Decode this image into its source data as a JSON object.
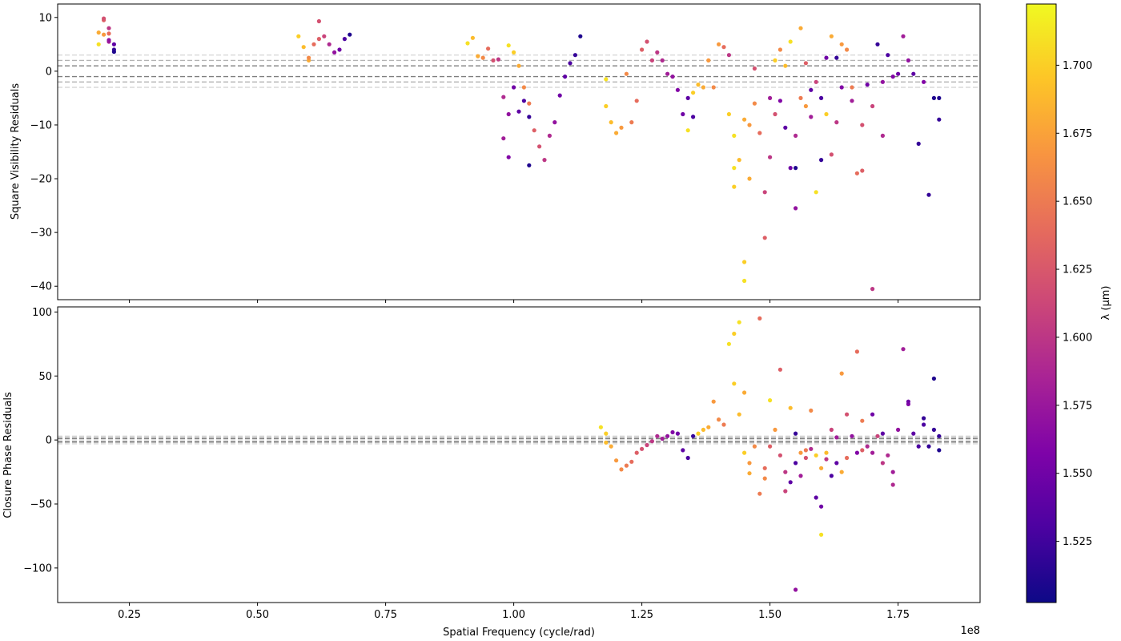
{
  "colors": {
    "grid_inner": "#7f7f7f",
    "grid_outer": "#d9d9d9",
    "frame": "#000000"
  },
  "colorbar": {
    "label": "λ (µm)",
    "vmin": 1.5025,
    "vmax": 1.7225,
    "ticks": [
      "1.525",
      "1.550",
      "1.575",
      "1.600",
      "1.625",
      "1.650",
      "1.675",
      "1.700"
    ],
    "tick_values": [
      1.525,
      1.55,
      1.575,
      1.6,
      1.625,
      1.65,
      1.675,
      1.7
    ],
    "colormap": "plasma"
  },
  "chart_data": [
    {
      "type": "scatter",
      "ylabel": "Square Visibility Residuals",
      "xlabel": "",
      "xlim": [
        0.11,
        1.91
      ],
      "ylim": [
        -42.5,
        12.5
      ],
      "x_scale_label": "",
      "yticks": [
        10,
        0,
        -10,
        -20,
        -30,
        -40
      ],
      "ytick_labels": [
        "10",
        "0",
        "−10",
        "−20",
        "−30",
        "−40"
      ],
      "reference_lines": [
        {
          "y": 1,
          "style": "dashed",
          "shade": "dark"
        },
        {
          "y": -1,
          "style": "dashed",
          "shade": "dark"
        },
        {
          "y": 2,
          "style": "dashed",
          "shade": "medium"
        },
        {
          "y": -2,
          "style": "dashed",
          "shade": "medium"
        },
        {
          "y": 3,
          "style": "dashed",
          "shade": "light"
        },
        {
          "y": -3,
          "style": "dashed",
          "shade": "light"
        }
      ],
      "points": [
        [
          0.19,
          5.0,
          1.71
        ],
        [
          0.19,
          7.2,
          1.68
        ],
        [
          0.2,
          6.8,
          1.67
        ],
        [
          0.2,
          9.5,
          1.63
        ],
        [
          0.2,
          9.8,
          1.62
        ],
        [
          0.21,
          7.0,
          1.64
        ],
        [
          0.21,
          8.0,
          1.6
        ],
        [
          0.21,
          5.5,
          1.58
        ],
        [
          0.22,
          5.0,
          1.54
        ],
        [
          0.22,
          4.0,
          1.52
        ],
        [
          0.22,
          3.6,
          1.51
        ],
        [
          0.21,
          5.8,
          1.57
        ],
        [
          0.58,
          6.5,
          1.7
        ],
        [
          0.59,
          4.5,
          1.69
        ],
        [
          0.6,
          2.0,
          1.68
        ],
        [
          0.6,
          2.5,
          1.66
        ],
        [
          0.61,
          5.0,
          1.64
        ],
        [
          0.62,
          6.0,
          1.63
        ],
        [
          0.62,
          9.3,
          1.62
        ],
        [
          0.63,
          6.5,
          1.61
        ],
        [
          0.64,
          5.0,
          1.59
        ],
        [
          0.65,
          3.5,
          1.57
        ],
        [
          0.66,
          4.0,
          1.55
        ],
        [
          0.67,
          6.0,
          1.53
        ],
        [
          0.68,
          6.8,
          1.51
        ],
        [
          0.91,
          5.2,
          1.71
        ],
        [
          0.92,
          6.2,
          1.69
        ],
        [
          0.93,
          2.8,
          1.68
        ],
        [
          0.94,
          2.5,
          1.66
        ],
        [
          0.95,
          4.2,
          1.64
        ],
        [
          0.96,
          2.0,
          1.62
        ],
        [
          0.97,
          2.2,
          1.6
        ],
        [
          0.98,
          -4.8,
          1.59
        ],
        [
          0.98,
          -12.5,
          1.58
        ],
        [
          0.99,
          -8.0,
          1.57
        ],
        [
          0.99,
          -16.0,
          1.56
        ],
        [
          1.0,
          -3.0,
          1.55
        ],
        [
          1.01,
          -7.5,
          1.54
        ],
        [
          1.02,
          -5.5,
          1.53
        ],
        [
          1.03,
          -8.5,
          1.52
        ],
        [
          1.03,
          -17.5,
          1.51
        ],
        [
          0.99,
          4.8,
          1.71
        ],
        [
          1.0,
          3.5,
          1.7
        ],
        [
          1.01,
          1.0,
          1.68
        ],
        [
          1.02,
          -3.0,
          1.66
        ],
        [
          1.03,
          -6.0,
          1.65
        ],
        [
          1.04,
          -11.0,
          1.63
        ],
        [
          1.05,
          -14.0,
          1.62
        ],
        [
          1.06,
          -16.5,
          1.6
        ],
        [
          1.07,
          -12.0,
          1.59
        ],
        [
          1.08,
          -9.5,
          1.57
        ],
        [
          1.09,
          -4.5,
          1.55
        ],
        [
          1.1,
          -1.0,
          1.54
        ],
        [
          1.11,
          1.5,
          1.53
        ],
        [
          1.12,
          3.0,
          1.52
        ],
        [
          1.13,
          6.5,
          1.51
        ],
        [
          1.18,
          -1.5,
          1.71
        ],
        [
          1.18,
          -6.5,
          1.7
        ],
        [
          1.19,
          -9.5,
          1.69
        ],
        [
          1.2,
          -11.5,
          1.68
        ],
        [
          1.21,
          -10.5,
          1.67
        ],
        [
          1.22,
          -0.5,
          1.66
        ],
        [
          1.23,
          -9.5,
          1.65
        ],
        [
          1.24,
          -5.5,
          1.64
        ],
        [
          1.25,
          4.0,
          1.63
        ],
        [
          1.26,
          5.5,
          1.62
        ],
        [
          1.27,
          2.0,
          1.61
        ],
        [
          1.28,
          3.5,
          1.6
        ],
        [
          1.29,
          2.0,
          1.59
        ],
        [
          1.3,
          -0.5,
          1.58
        ],
        [
          1.31,
          -1.0,
          1.57
        ],
        [
          1.32,
          -3.5,
          1.56
        ],
        [
          1.33,
          -8.0,
          1.55
        ],
        [
          1.34,
          -5.0,
          1.54
        ],
        [
          1.35,
          -8.5,
          1.53
        ],
        [
          1.34,
          -11.0,
          1.71
        ],
        [
          1.35,
          -4.0,
          1.7
        ],
        [
          1.36,
          -2.5,
          1.69
        ],
        [
          1.37,
          -3.0,
          1.68
        ],
        [
          1.38,
          2.0,
          1.67
        ],
        [
          1.39,
          -3.0,
          1.66
        ],
        [
          1.4,
          5.0,
          1.67
        ],
        [
          1.41,
          4.5,
          1.64
        ],
        [
          1.42,
          3.0,
          1.6
        ],
        [
          1.42,
          -8.0,
          1.7
        ],
        [
          1.43,
          -12.0,
          1.71
        ],
        [
          1.43,
          -18.0,
          1.71
        ],
        [
          1.43,
          -21.5,
          1.7
        ],
        [
          1.44,
          -16.5,
          1.69
        ],
        [
          1.45,
          -35.5,
          1.7
        ],
        [
          1.45,
          -39.0,
          1.71
        ],
        [
          1.45,
          -9.0,
          1.68
        ],
        [
          1.46,
          -10.0,
          1.67
        ],
        [
          1.46,
          -20.0,
          1.68
        ],
        [
          1.47,
          -6.0,
          1.66
        ],
        [
          1.47,
          0.5,
          1.62
        ],
        [
          1.48,
          -11.5,
          1.64
        ],
        [
          1.49,
          -31.0,
          1.63
        ],
        [
          1.49,
          -22.5,
          1.61
        ],
        [
          1.5,
          -5.0,
          1.58
        ],
        [
          1.5,
          -16.0,
          1.6
        ],
        [
          1.51,
          -8.0,
          1.62
        ],
        [
          1.51,
          2.0,
          1.7
        ],
        [
          1.52,
          4.0,
          1.66
        ],
        [
          1.52,
          -5.5,
          1.56
        ],
        [
          1.53,
          -10.5,
          1.54
        ],
        [
          1.53,
          1.0,
          1.69
        ],
        [
          1.54,
          -18.0,
          1.55
        ],
        [
          1.54,
          5.5,
          1.71
        ],
        [
          1.55,
          -18.0,
          1.51
        ],
        [
          1.55,
          -25.5,
          1.57
        ],
        [
          1.55,
          -12.0,
          1.59
        ],
        [
          1.56,
          -5.0,
          1.65
        ],
        [
          1.56,
          8.0,
          1.68
        ],
        [
          1.57,
          -6.5,
          1.67
        ],
        [
          1.57,
          1.5,
          1.63
        ],
        [
          1.58,
          -3.5,
          1.54
        ],
        [
          1.58,
          -8.5,
          1.58
        ],
        [
          1.59,
          -2.0,
          1.61
        ],
        [
          1.59,
          -22.5,
          1.71
        ],
        [
          1.6,
          -5.0,
          1.53
        ],
        [
          1.6,
          -16.5,
          1.52
        ],
        [
          1.61,
          -8.0,
          1.7
        ],
        [
          1.61,
          2.5,
          1.55
        ],
        [
          1.62,
          -15.5,
          1.62
        ],
        [
          1.62,
          6.5,
          1.68
        ],
        [
          1.63,
          -9.5,
          1.6
        ],
        [
          1.63,
          2.5,
          1.52
        ],
        [
          1.64,
          5.0,
          1.67
        ],
        [
          1.64,
          -3.0,
          1.56
        ],
        [
          1.65,
          4.0,
          1.66
        ],
        [
          1.66,
          -5.5,
          1.58
        ],
        [
          1.66,
          -3.0,
          1.65
        ],
        [
          1.67,
          -19.0,
          1.64
        ],
        [
          1.68,
          -18.5,
          1.63
        ],
        [
          1.68,
          -10.0,
          1.62
        ],
        [
          1.69,
          -2.5,
          1.55
        ],
        [
          1.7,
          -6.5,
          1.61
        ],
        [
          1.7,
          -40.5,
          1.6
        ],
        [
          1.71,
          5.0,
          1.52
        ],
        [
          1.72,
          -12.0,
          1.59
        ],
        [
          1.72,
          -2.0,
          1.57
        ],
        [
          1.73,
          3.0,
          1.53
        ],
        [
          1.74,
          -1.0,
          1.56
        ],
        [
          1.75,
          -0.5,
          1.55
        ],
        [
          1.76,
          6.5,
          1.58
        ],
        [
          1.77,
          2.0,
          1.57
        ],
        [
          1.78,
          -0.5,
          1.54
        ],
        [
          1.79,
          -13.5,
          1.52
        ],
        [
          1.8,
          -2.0,
          1.56
        ],
        [
          1.81,
          -23.0,
          1.52
        ],
        [
          1.82,
          -5.0,
          1.51
        ],
        [
          1.83,
          -5.0,
          1.51
        ],
        [
          1.83,
          -9.0,
          1.52
        ]
      ]
    },
    {
      "type": "scatter",
      "ylabel": "Closure Phase Residuals",
      "xlabel": "Spatial Frequency (cycle/rad)",
      "xlim": [
        0.11,
        1.91
      ],
      "ylim": [
        -127,
        104
      ],
      "x_scale_label": "1e8",
      "xticks": [
        0.25,
        0.5,
        0.75,
        1.0,
        1.25,
        1.5,
        1.75
      ],
      "xtick_labels": [
        "0.25",
        "0.50",
        "0.75",
        "1.00",
        "1.25",
        "1.50",
        "1.75"
      ],
      "yticks": [
        100,
        50,
        0,
        -50,
        -100
      ],
      "ytick_labels": [
        "100",
        "50",
        "0",
        "−50",
        "−100"
      ],
      "reference_lines": [
        {
          "y": 1,
          "style": "dashed",
          "shade": "dark"
        },
        {
          "y": -1,
          "style": "dashed",
          "shade": "dark"
        },
        {
          "y": 2,
          "style": "dashed",
          "shade": "medium"
        },
        {
          "y": -2,
          "style": "dashed",
          "shade": "medium"
        },
        {
          "y": 3,
          "style": "dashed",
          "shade": "light"
        },
        {
          "y": -3,
          "style": "dashed",
          "shade": "light"
        }
      ],
      "points": [
        [
          1.17,
          10,
          1.71
        ],
        [
          1.18,
          5,
          1.7
        ],
        [
          1.18,
          -2,
          1.69
        ],
        [
          1.19,
          -5,
          1.68
        ],
        [
          1.2,
          -16,
          1.67
        ],
        [
          1.21,
          -23,
          1.66
        ],
        [
          1.22,
          -20,
          1.65
        ],
        [
          1.23,
          -17,
          1.64
        ],
        [
          1.24,
          -10,
          1.63
        ],
        [
          1.25,
          -7,
          1.62
        ],
        [
          1.26,
          -4,
          1.61
        ],
        [
          1.27,
          -1,
          1.6
        ],
        [
          1.28,
          3,
          1.59
        ],
        [
          1.29,
          1,
          1.58
        ],
        [
          1.3,
          3,
          1.57
        ],
        [
          1.31,
          6,
          1.56
        ],
        [
          1.32,
          5,
          1.55
        ],
        [
          1.33,
          -8,
          1.54
        ],
        [
          1.34,
          -14,
          1.53
        ],
        [
          1.35,
          3,
          1.52
        ],
        [
          1.36,
          5,
          1.7
        ],
        [
          1.37,
          8,
          1.69
        ],
        [
          1.38,
          10,
          1.68
        ],
        [
          1.39,
          30,
          1.67
        ],
        [
          1.4,
          16,
          1.66
        ],
        [
          1.41,
          12,
          1.65
        ],
        [
          1.42,
          75,
          1.71
        ],
        [
          1.43,
          83,
          1.7
        ],
        [
          1.43,
          44,
          1.7
        ],
        [
          1.44,
          92,
          1.71
        ],
        [
          1.44,
          20,
          1.69
        ],
        [
          1.45,
          37,
          1.68
        ],
        [
          1.45,
          -10,
          1.7
        ],
        [
          1.46,
          -18,
          1.67
        ],
        [
          1.46,
          -26,
          1.68
        ],
        [
          1.47,
          -5,
          1.66
        ],
        [
          1.48,
          95,
          1.64
        ],
        [
          1.48,
          -42,
          1.65
        ],
        [
          1.49,
          -30,
          1.66
        ],
        [
          1.49,
          -22,
          1.64
        ],
        [
          1.5,
          -5,
          1.63
        ],
        [
          1.5,
          31,
          1.71
        ],
        [
          1.51,
          8,
          1.67
        ],
        [
          1.52,
          -12,
          1.62
        ],
        [
          1.52,
          55,
          1.63
        ],
        [
          1.53,
          -40,
          1.61
        ],
        [
          1.53,
          -25,
          1.6
        ],
        [
          1.54,
          -33,
          1.54
        ],
        [
          1.54,
          25,
          1.69
        ],
        [
          1.55,
          -18,
          1.53
        ],
        [
          1.55,
          -117,
          1.57
        ],
        [
          1.55,
          5,
          1.52
        ],
        [
          1.56,
          -28,
          1.58
        ],
        [
          1.56,
          -10,
          1.67
        ],
        [
          1.57,
          -8,
          1.65
        ],
        [
          1.57,
          -14,
          1.62
        ],
        [
          1.58,
          23,
          1.66
        ],
        [
          1.58,
          -7,
          1.59
        ],
        [
          1.59,
          -12,
          1.7
        ],
        [
          1.59,
          -45,
          1.54
        ],
        [
          1.6,
          -74,
          1.71
        ],
        [
          1.6,
          -52,
          1.55
        ],
        [
          1.6,
          -22,
          1.68
        ],
        [
          1.61,
          -10,
          1.69
        ],
        [
          1.61,
          -15,
          1.6
        ],
        [
          1.62,
          -28,
          1.53
        ],
        [
          1.62,
          8,
          1.61
        ],
        [
          1.63,
          -18,
          1.54
        ],
        [
          1.63,
          2,
          1.58
        ],
        [
          1.64,
          52,
          1.67
        ],
        [
          1.64,
          -25,
          1.68
        ],
        [
          1.65,
          -14,
          1.64
        ],
        [
          1.65,
          20,
          1.62
        ],
        [
          1.66,
          3,
          1.57
        ],
        [
          1.67,
          69,
          1.64
        ],
        [
          1.67,
          -10,
          1.56
        ],
        [
          1.68,
          15,
          1.65
        ],
        [
          1.68,
          -8,
          1.63
        ],
        [
          1.69,
          -5,
          1.59
        ],
        [
          1.7,
          20,
          1.55
        ],
        [
          1.7,
          -10,
          1.58
        ],
        [
          1.71,
          3,
          1.61
        ],
        [
          1.72,
          -18,
          1.6
        ],
        [
          1.72,
          5,
          1.54
        ],
        [
          1.73,
          -12,
          1.59
        ],
        [
          1.74,
          -35,
          1.59
        ],
        [
          1.74,
          -25,
          1.58
        ],
        [
          1.75,
          8,
          1.57
        ],
        [
          1.76,
          71,
          1.58
        ],
        [
          1.77,
          28,
          1.56
        ],
        [
          1.77,
          30,
          1.55
        ],
        [
          1.78,
          5,
          1.54
        ],
        [
          1.79,
          -5,
          1.53
        ],
        [
          1.8,
          17,
          1.52
        ],
        [
          1.8,
          12,
          1.53
        ],
        [
          1.81,
          -5,
          1.52
        ],
        [
          1.82,
          48,
          1.51
        ],
        [
          1.82,
          8,
          1.52
        ],
        [
          1.83,
          -8,
          1.51
        ],
        [
          1.83,
          3,
          1.52
        ]
      ]
    }
  ]
}
